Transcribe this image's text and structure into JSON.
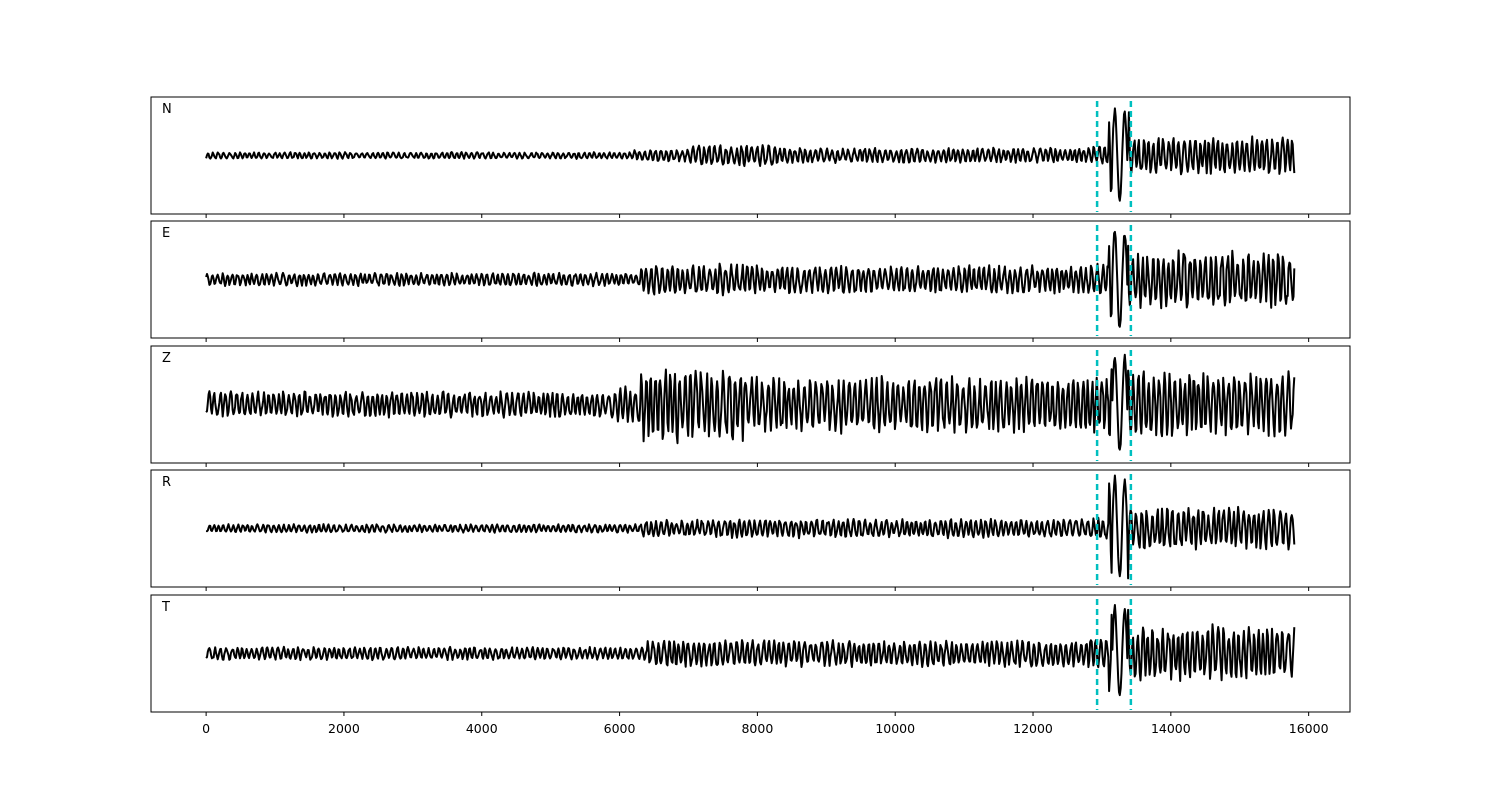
{
  "chart_data": {
    "type": "line",
    "x_ticks": [
      "0",
      "2000",
      "4000",
      "6000",
      "8000",
      "10000",
      "12000",
      "14000",
      "16000"
    ],
    "xlim": [
      -800,
      16600
    ],
    "n_samples": 15800,
    "picks": [
      12930,
      13420
    ],
    "pick_color": "#00bfbf",
    "trace_color": "#000000",
    "panels": [
      {
        "label": "N",
        "ylim": [
          -1.2,
          1.2
        ],
        "pre_event_amplitude": 0.07,
        "segments": [
          {
            "x": [
              0,
              6200
            ],
            "amplitude": 0.07
          },
          {
            "x": [
              6200,
              7000
            ],
            "amplitude": 0.13
          },
          {
            "x": [
              7000,
              8300
            ],
            "amplitude": 0.22
          },
          {
            "x": [
              8300,
              12800
            ],
            "amplitude": 0.16
          },
          {
            "x": [
              12800,
              13100
            ],
            "amplitude": 0.2
          },
          {
            "x": [
              13100,
              13400
            ],
            "amplitude": 1.0
          },
          {
            "x": [
              13400,
              15800
            ],
            "amplitude": 0.4
          }
        ]
      },
      {
        "label": "E",
        "ylim": [
          -1.2,
          1.2
        ],
        "segments": [
          {
            "x": [
              0,
              6300
            ],
            "amplitude": 0.14
          },
          {
            "x": [
              6300,
              8000
            ],
            "amplitude": 0.33
          },
          {
            "x": [
              8000,
              12800
            ],
            "amplitude": 0.3
          },
          {
            "x": [
              12800,
              13100
            ],
            "amplitude": 0.35
          },
          {
            "x": [
              13100,
              13400
            ],
            "amplitude": 1.05
          },
          {
            "x": [
              13400,
              15800
            ],
            "amplitude": 0.6
          }
        ]
      },
      {
        "label": "Z",
        "ylim": [
          -1.2,
          1.2
        ],
        "segments": [
          {
            "x": [
              0,
              5900
            ],
            "amplitude": 0.28
          },
          {
            "x": [
              5900,
              6300
            ],
            "amplitude": 0.4
          },
          {
            "x": [
              6300,
              7800
            ],
            "amplitude": 0.8
          },
          {
            "x": [
              7800,
              12800
            ],
            "amplitude": 0.6
          },
          {
            "x": [
              12800,
              13100
            ],
            "amplitude": 0.6
          },
          {
            "x": [
              13100,
              13400
            ],
            "amplitude": 1.05
          },
          {
            "x": [
              13400,
              15800
            ],
            "amplitude": 0.7
          }
        ]
      },
      {
        "label": "R",
        "ylim": [
          -1.2,
          1.2
        ],
        "segments": [
          {
            "x": [
              0,
              6300
            ],
            "amplitude": 0.09
          },
          {
            "x": [
              6300,
              7200
            ],
            "amplitude": 0.18
          },
          {
            "x": [
              7200,
              12800
            ],
            "amplitude": 0.2
          },
          {
            "x": [
              12800,
              13100
            ],
            "amplitude": 0.25
          },
          {
            "x": [
              13100,
              13400
            ],
            "amplitude": 1.1
          },
          {
            "x": [
              13400,
              15800
            ],
            "amplitude": 0.45
          }
        ]
      },
      {
        "label": "T",
        "ylim": [
          -1.2,
          1.2
        ],
        "segments": [
          {
            "x": [
              0,
              6400
            ],
            "amplitude": 0.14
          },
          {
            "x": [
              6400,
              8000
            ],
            "amplitude": 0.3
          },
          {
            "x": [
              8000,
              12800
            ],
            "amplitude": 0.28
          },
          {
            "x": [
              12800,
              13100
            ],
            "amplitude": 0.35
          },
          {
            "x": [
              13100,
              13400
            ],
            "amplitude": 1.0
          },
          {
            "x": [
              13400,
              15800
            ],
            "amplitude": 0.6
          }
        ]
      }
    ]
  }
}
